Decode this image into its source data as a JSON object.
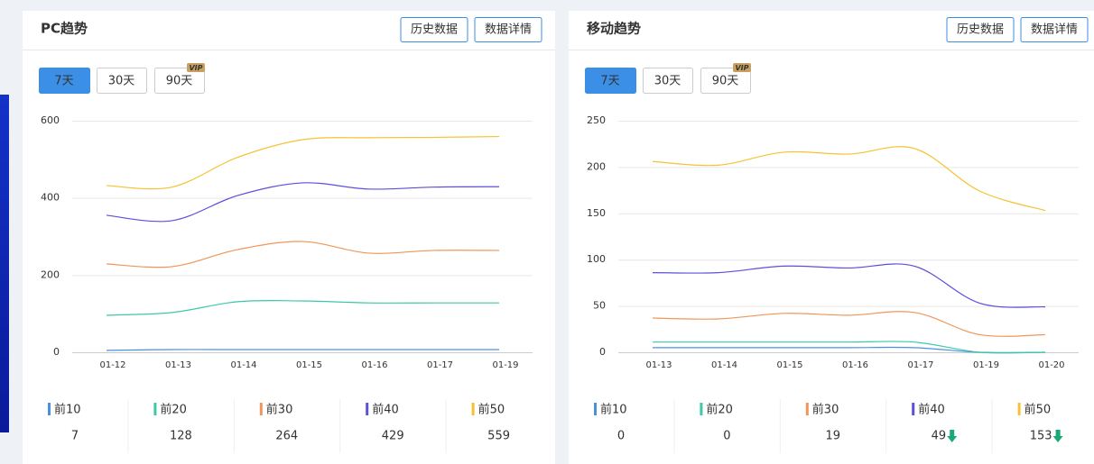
{
  "panels": [
    {
      "title": "PC趋势",
      "buttons": [
        "历史数据",
        "数据详情"
      ],
      "tabs": [
        "7天",
        "30天",
        "90天"
      ],
      "active_tab": 0,
      "vip_badge": "VIP",
      "stats": [
        7,
        128,
        264,
        429,
        559
      ],
      "stat_trends": [
        null,
        null,
        null,
        null,
        null
      ]
    },
    {
      "title": "移动趋势",
      "buttons": [
        "历史数据",
        "数据详情"
      ],
      "tabs": [
        "7天",
        "30天",
        "90天"
      ],
      "active_tab": 0,
      "vip_badge": "VIP",
      "stats": [
        0,
        0,
        19,
        49,
        153
      ],
      "stat_trends": [
        null,
        null,
        null,
        "down",
        "down"
      ]
    }
  ],
  "chart_data": [
    {
      "type": "line",
      "categories": [
        "01-12",
        "01-13",
        "01-14",
        "01-15",
        "01-16",
        "01-17",
        "01-19"
      ],
      "ylim": [
        0,
        600
      ],
      "yticks": [
        0,
        200,
        400,
        600
      ],
      "grid": true,
      "series": [
        {
          "name": "前10",
          "color": "#4a90e2",
          "values": [
            5,
            7,
            7,
            7,
            7,
            7,
            7
          ]
        },
        {
          "name": "前20",
          "color": "#3cc9a8",
          "values": [
            96,
            103,
            131,
            133,
            128,
            128,
            128
          ]
        },
        {
          "name": "前30",
          "color": "#f0965a",
          "values": [
            229,
            222,
            266,
            287,
            257,
            264,
            264
          ]
        },
        {
          "name": "前40",
          "color": "#5b4fdc",
          "values": [
            355,
            341,
            406,
            439,
            423,
            428,
            429
          ]
        },
        {
          "name": "前50",
          "color": "#f5c232",
          "values": [
            432,
            428,
            505,
            551,
            556,
            557,
            559
          ]
        }
      ]
    },
    {
      "type": "line",
      "categories": [
        "01-13",
        "01-14",
        "01-15",
        "01-16",
        "01-17",
        "01-19",
        "01-20"
      ],
      "ylim": [
        0,
        250
      ],
      "yticks": [
        0,
        50,
        100,
        150,
        200,
        250
      ],
      "grid": true,
      "series": [
        {
          "name": "前10",
          "color": "#4a90e2",
          "values": [
            5,
            5,
            5,
            5,
            5,
            0,
            0
          ]
        },
        {
          "name": "前20",
          "color": "#3cc9a8",
          "values": [
            11,
            11,
            11,
            11,
            11,
            0,
            0
          ]
        },
        {
          "name": "前30",
          "color": "#f0965a",
          "values": [
            37,
            36,
            42,
            40,
            43,
            19,
            19
          ]
        },
        {
          "name": "前40",
          "color": "#5b4fdc",
          "values": [
            86,
            86,
            93,
            91,
            93,
            53,
            49
          ]
        },
        {
          "name": "前50",
          "color": "#f5c232",
          "values": [
            206,
            202,
            216,
            214,
            220,
            174,
            153
          ]
        }
      ]
    }
  ]
}
